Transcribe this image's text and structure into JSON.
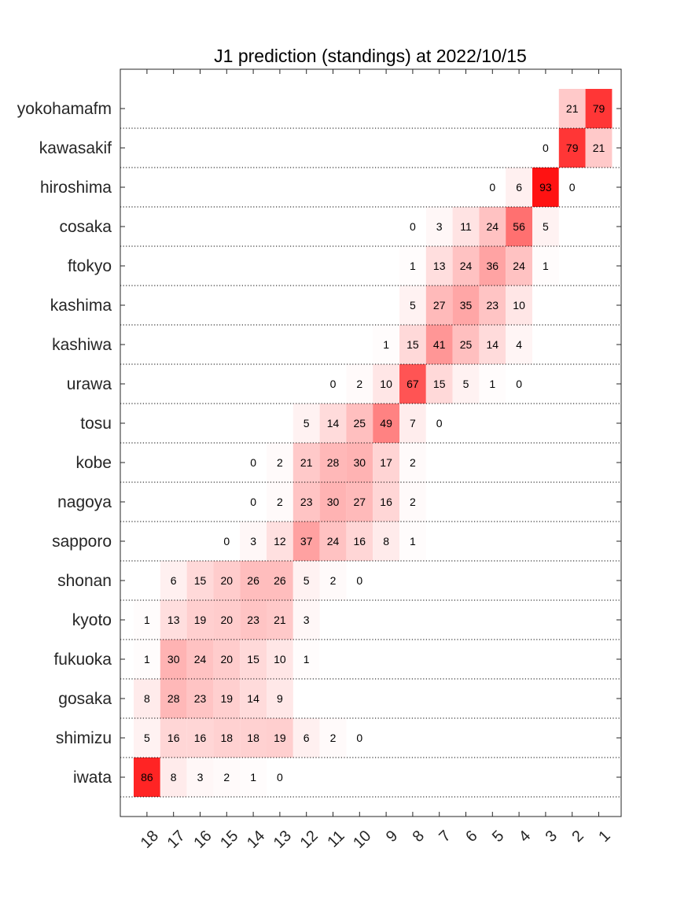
{
  "chart_data": {
    "type": "heatmap",
    "title": "J1 prediction (standings) at 2022/10/15",
    "x_categories": [
      "18",
      "17",
      "16",
      "15",
      "14",
      "13",
      "12",
      "11",
      "10",
      "9",
      "8",
      "7",
      "6",
      "5",
      "4",
      "3",
      "2",
      "1"
    ],
    "y_categories": [
      "yokohamafm",
      "kawasakif",
      "hiroshima",
      "cosaka",
      "ftokyo",
      "kashima",
      "kashiwa",
      "urawa",
      "tosu",
      "kobe",
      "nagoya",
      "sapporo",
      "shonan",
      "kyoto",
      "fukuoka",
      "gosaka",
      "shimizu",
      "iwata"
    ],
    "value_range": [
      0,
      100
    ],
    "colormap": "white-to-red",
    "grid": "dotted horizontal separators between rows",
    "values": [
      [
        null,
        null,
        null,
        null,
        null,
        null,
        null,
        null,
        null,
        null,
        null,
        null,
        null,
        null,
        null,
        null,
        21,
        79
      ],
      [
        null,
        null,
        null,
        null,
        null,
        null,
        null,
        null,
        null,
        null,
        null,
        null,
        null,
        null,
        null,
        0,
        79,
        21
      ],
      [
        null,
        null,
        null,
        null,
        null,
        null,
        null,
        null,
        null,
        null,
        null,
        null,
        null,
        0,
        6,
        93,
        0,
        null
      ],
      [
        null,
        null,
        null,
        null,
        null,
        null,
        null,
        null,
        null,
        null,
        0,
        3,
        11,
        24,
        56,
        5,
        null,
        null
      ],
      [
        null,
        null,
        null,
        null,
        null,
        null,
        null,
        null,
        null,
        null,
        1,
        13,
        24,
        36,
        24,
        1,
        null,
        null
      ],
      [
        null,
        null,
        null,
        null,
        null,
        null,
        null,
        null,
        null,
        null,
        5,
        27,
        35,
        23,
        10,
        null,
        null,
        null
      ],
      [
        null,
        null,
        null,
        null,
        null,
        null,
        null,
        null,
        null,
        1,
        15,
        41,
        25,
        14,
        4,
        null,
        null,
        null
      ],
      [
        null,
        null,
        null,
        null,
        null,
        null,
        null,
        0,
        2,
        10,
        67,
        15,
        5,
        1,
        0,
        null,
        null,
        null
      ],
      [
        null,
        null,
        null,
        null,
        null,
        null,
        5,
        14,
        25,
        49,
        7,
        0,
        null,
        null,
        null,
        null,
        null,
        null
      ],
      [
        null,
        null,
        null,
        null,
        0,
        2,
        21,
        28,
        30,
        17,
        2,
        null,
        null,
        null,
        null,
        null,
        null,
        null
      ],
      [
        null,
        null,
        null,
        null,
        0,
        2,
        23,
        30,
        27,
        16,
        2,
        null,
        null,
        null,
        null,
        null,
        null,
        null
      ],
      [
        null,
        null,
        null,
        0,
        3,
        12,
        37,
        24,
        16,
        8,
        1,
        null,
        null,
        null,
        null,
        null,
        null,
        null
      ],
      [
        null,
        6,
        15,
        20,
        26,
        26,
        5,
        2,
        0,
        null,
        null,
        null,
        null,
        null,
        null,
        null,
        null,
        null
      ],
      [
        1,
        13,
        19,
        20,
        23,
        21,
        3,
        null,
        null,
        null,
        null,
        null,
        null,
        null,
        null,
        null,
        null,
        null
      ],
      [
        1,
        30,
        24,
        20,
        15,
        10,
        1,
        null,
        null,
        null,
        null,
        null,
        null,
        null,
        null,
        null,
        null,
        null
      ],
      [
        8,
        28,
        23,
        19,
        14,
        9,
        null,
        null,
        null,
        null,
        null,
        null,
        null,
        null,
        null,
        null,
        null,
        null
      ],
      [
        5,
        16,
        16,
        18,
        18,
        19,
        6,
        2,
        0,
        null,
        null,
        null,
        null,
        null,
        null,
        null,
        null,
        null
      ],
      [
        86,
        8,
        3,
        2,
        1,
        0,
        null,
        null,
        null,
        null,
        null,
        null,
        null,
        null,
        null,
        null,
        null,
        null
      ]
    ]
  },
  "colors": {
    "max": "#ff0000",
    "min": "#ffffff",
    "axis": "#262626",
    "separator": "#000000"
  }
}
